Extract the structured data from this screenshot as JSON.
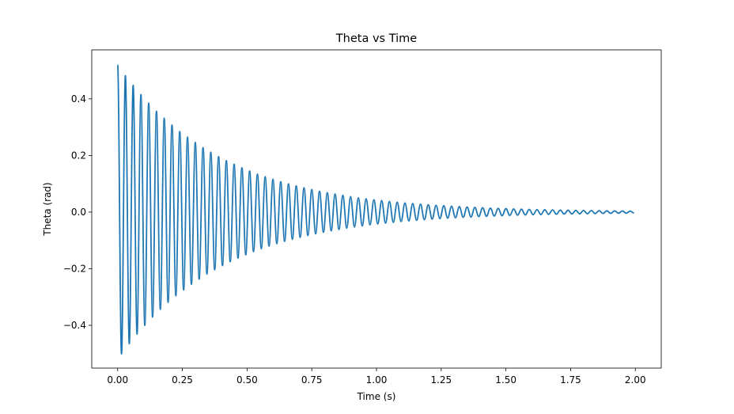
{
  "chart_data": {
    "type": "line",
    "title": "Theta vs Time",
    "x_label": "Time (s)",
    "y_label": "Theta (rad)",
    "x": [
      0,
      0.015,
      0.03,
      0.045,
      0.06,
      0.075,
      0.09,
      0.105,
      0.12,
      0.135,
      0.15,
      0.165,
      0.18,
      0.195,
      0.21,
      0.225,
      0.24,
      0.255,
      0.27,
      0.285,
      0.3,
      0.315,
      0.33,
      0.345,
      0.36,
      0.375,
      0.39,
      0.405,
      0.42,
      0.435,
      0.45,
      0.465,
      0.48,
      0.495,
      0.51,
      0.525,
      0.54,
      0.555,
      0.57,
      0.585,
      0.6,
      0.615,
      0.63,
      0.645,
      0.66,
      0.675,
      0.69,
      0.705,
      0.72,
      0.735,
      0.75,
      0.765,
      0.78,
      0.795,
      0.81,
      0.825,
      0.84,
      0.855,
      0.87,
      0.885,
      0.9,
      0.915,
      0.93,
      0.945,
      0.96,
      0.975,
      0.99,
      1.005,
      1.02,
      1.035,
      1.05,
      1.065,
      1.08,
      1.095,
      1.11,
      1.125,
      1.14,
      1.155,
      1.17,
      1.185,
      1.2,
      1.215,
      1.23,
      1.245,
      1.26,
      1.275,
      1.29,
      1.305,
      1.32,
      1.335,
      1.35,
      1.365,
      1.38,
      1.395,
      1.41,
      1.425,
      1.44,
      1.455,
      1.47,
      1.485,
      1.5,
      1.515,
      1.53,
      1.545,
      1.56,
      1.575,
      1.59,
      1.605,
      1.62,
      1.635,
      1.65,
      1.665,
      1.68,
      1.695,
      1.71,
      1.725,
      1.74,
      1.755,
      1.77,
      1.785,
      1.8,
      1.815,
      1.83,
      1.845,
      1.86,
      1.875,
      1.89,
      1.905,
      1.92,
      1.935,
      1.95,
      1.965,
      1.98,
      1.995
    ],
    "series": [
      {
        "name": "theta",
        "color": "#1f77b4",
        "values": [
          0.52,
          -0.501,
          0.482,
          -0.465,
          0.448,
          -0.431,
          0.415,
          -0.4,
          0.385,
          -0.371,
          0.357,
          -0.344,
          0.332,
          -0.319,
          0.308,
          -0.296,
          0.285,
          -0.275,
          0.265,
          -0.255,
          0.246,
          -0.237,
          0.228,
          -0.219,
          0.2114,
          -0.2037,
          0.1961,
          -0.1889,
          0.182,
          -0.1753,
          0.1688,
          -0.1626,
          0.1566,
          -0.1509,
          0.1453,
          -0.14,
          0.1348,
          -0.1298,
          0.1251,
          -0.1205,
          0.116,
          -0.1118,
          0.1076,
          -0.1037,
          0.0999,
          -0.0962,
          0.0926,
          -0.0892,
          0.086,
          -0.0828,
          0.0797,
          -0.0768,
          0.074,
          -0.0713,
          0.0686,
          -0.0661,
          0.0637,
          -0.0614,
          0.0591,
          -0.0569,
          0.0548,
          -0.0528,
          0.0509,
          -0.049,
          0.0472,
          -0.0454,
          0.0438,
          -0.0421,
          0.0406,
          -0.0391,
          0.0377,
          -0.0363,
          0.0349,
          -0.0337,
          0.0324,
          -0.0312,
          0.0301,
          -0.029,
          0.0279,
          -0.0269,
          0.0259,
          -0.0249,
          0.024,
          -0.0231,
          0.0223,
          -0.0215,
          0.0207,
          -0.0199,
          0.0192,
          -0.0185,
          0.0178,
          -0.0171,
          0.0165,
          -0.0159,
          0.0153,
          -0.0148,
          0.0142,
          -0.0137,
          0.0132,
          -0.0127,
          0.0122,
          -0.0118,
          0.0113,
          -0.0109,
          0.0105,
          -0.0101,
          0.0097,
          -0.0094,
          0.009,
          -0.0087,
          0.0084,
          -0.0081,
          0.0078,
          -0.0075,
          0.0072,
          -0.007,
          0.0067,
          -0.0065,
          0.0062,
          -0.006,
          0.0058,
          -0.0056,
          0.0054,
          -0.0052,
          0.005,
          -0.0048,
          0.0046,
          -0.0044,
          0.0043,
          -0.0041,
          0.004,
          -0.0038,
          0.0037,
          -0.0035
        ]
      }
    ],
    "xlim": [
      -0.1,
      2.1
    ],
    "ylim": [
      -0.551,
      0.573
    ],
    "xticks": [
      {
        "value": 0,
        "label": "0.00"
      },
      {
        "value": 0.25,
        "label": "0.25"
      },
      {
        "value": 0.5,
        "label": "0.50"
      },
      {
        "value": 0.75,
        "label": "0.75"
      },
      {
        "value": 1,
        "label": "1.00"
      },
      {
        "value": 1.25,
        "label": "1.25"
      },
      {
        "value": 1.5,
        "label": "1.50"
      },
      {
        "value": 1.75,
        "label": "1.75"
      },
      {
        "value": 2,
        "label": "2.00"
      }
    ],
    "yticks": [
      {
        "value": -0.4,
        "label": "−0.4"
      },
      {
        "value": -0.2,
        "label": "−0.2"
      },
      {
        "value": 0,
        "label": "0.0"
      },
      {
        "value": 0.2,
        "label": "0.2"
      },
      {
        "value": 0.4,
        "label": "0.4"
      }
    ],
    "grid": false
  }
}
